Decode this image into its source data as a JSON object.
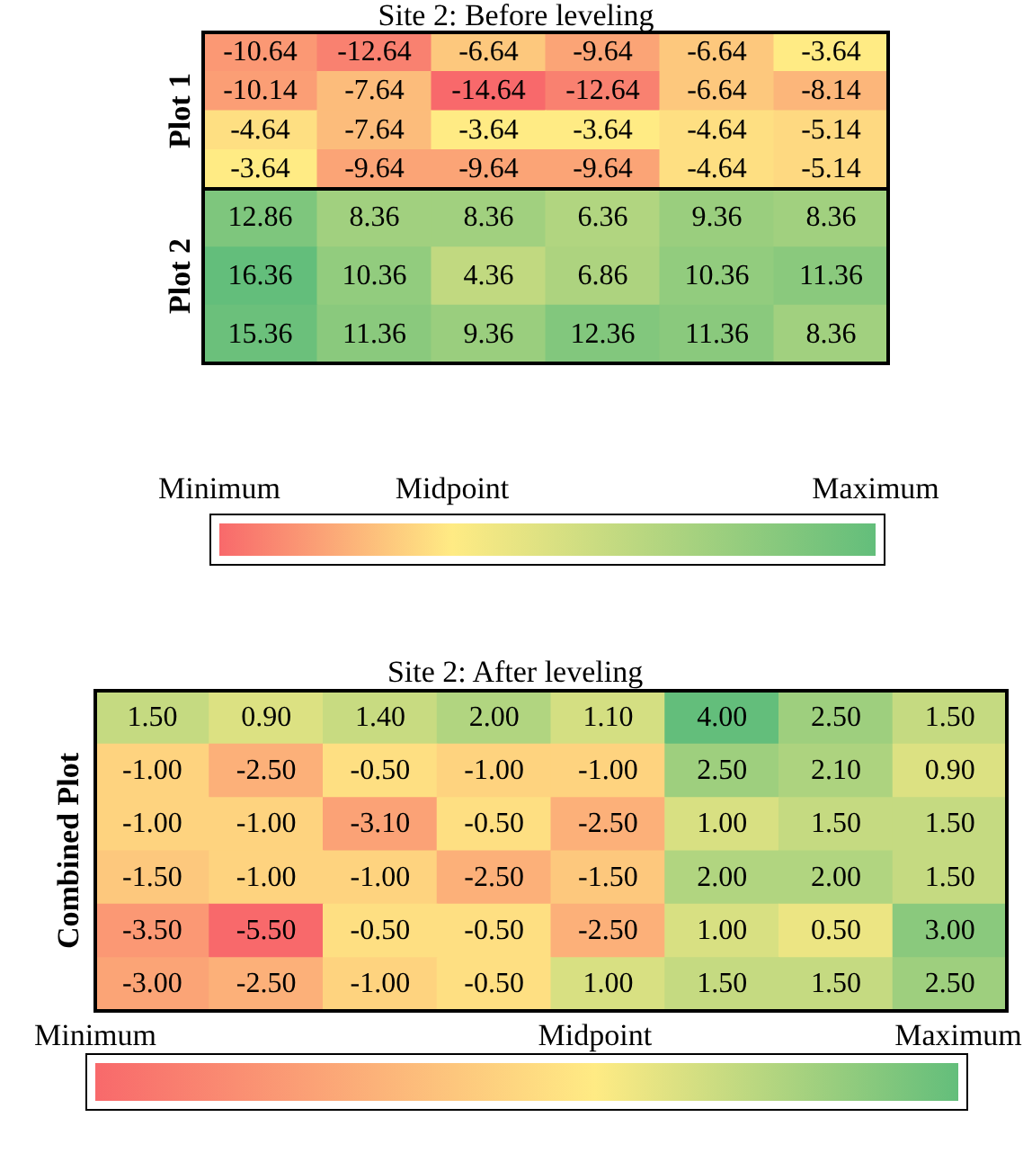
{
  "chart_data": [
    {
      "type": "heatmap",
      "title": "Site 2: Before leveling",
      "ylabel": "Plot 1",
      "tick_labels": false,
      "data_labels": true,
      "categories": [
        null,
        null,
        null,
        null,
        null,
        null
      ],
      "y_categories": [
        null,
        null,
        null,
        null
      ],
      "cells": [
        [
          -10.64,
          -12.64,
          -6.64,
          -9.64,
          -6.64,
          -3.64
        ],
        [
          -10.14,
          -7.64,
          -14.64,
          -12.64,
          -6.64,
          -8.14
        ],
        [
          -4.64,
          -7.64,
          -3.64,
          -3.64,
          -4.64,
          -5.14
        ],
        [
          -3.64,
          -9.64,
          -9.64,
          -9.64,
          -4.64,
          -5.14
        ]
      ],
      "cell_labels": [
        [
          "-10.64",
          "-12.64",
          "-6.64",
          "-9.64",
          "-6.64",
          "-3.64"
        ],
        [
          "-10.14",
          "-7.64",
          "-14.64",
          "-12.64",
          "-6.64",
          "-8.14"
        ],
        [
          "-4.64",
          "-7.64",
          "-3.64",
          "-3.64",
          "-4.64",
          "-5.14"
        ],
        [
          "-3.64",
          "-9.64",
          "-9.64",
          "-9.64",
          "-4.64",
          "-5.14"
        ]
      ]
    },
    {
      "type": "heatmap",
      "ylabel": "Plot 2",
      "tick_labels": false,
      "data_labels": true,
      "categories": [
        null,
        null,
        null,
        null,
        null,
        null
      ],
      "y_categories": [
        null,
        null,
        null
      ],
      "clim": [
        -14.64,
        16.36
      ],
      "cticks": [
        {
          "value": -14.64,
          "label": "Minimum"
        },
        {
          "value": -3.64,
          "label": "Midpoint"
        },
        {
          "value": 16.36,
          "label": "Maximum"
        }
      ],
      "cells": [
        [
          12.86,
          8.36,
          8.36,
          6.36,
          9.36,
          8.36
        ],
        [
          16.36,
          10.36,
          4.36,
          6.86,
          10.36,
          11.36
        ],
        [
          15.36,
          11.36,
          9.36,
          12.36,
          11.36,
          8.36
        ]
      ],
      "cell_labels": [
        [
          "12.86",
          "8.36",
          "8.36",
          "6.36",
          "9.36",
          "8.36"
        ],
        [
          "16.36",
          "10.36",
          "4.36",
          "6.86",
          "10.36",
          "11.36"
        ],
        [
          "15.36",
          "11.36",
          "9.36",
          "12.36",
          "11.36",
          "8.36"
        ]
      ]
    },
    {
      "type": "heatmap",
      "title": "Site 2: After leveling",
      "ylabel": "Combined Plot",
      "tick_labels": false,
      "data_labels": true,
      "categories": [
        null,
        null,
        null,
        null,
        null,
        null,
        null,
        null
      ],
      "y_categories": [
        null,
        null,
        null,
        null,
        null,
        null
      ],
      "clim": [
        -5.5,
        4.0
      ],
      "cticks": [
        {
          "value": -5.5,
          "label": "Minimum"
        },
        {
          "value": 0,
          "label": "Midpoint"
        },
        {
          "value": 4.0,
          "label": "Maximum"
        }
      ],
      "cells": [
        [
          1.5,
          0.9,
          1.4,
          2.0,
          1.1,
          4.0,
          2.5,
          1.5
        ],
        [
          -1.0,
          -2.5,
          -0.5,
          -1.0,
          -1.0,
          2.5,
          2.1,
          0.9
        ],
        [
          -1.0,
          -1.0,
          -3.1,
          -0.5,
          -2.5,
          1.0,
          1.5,
          1.5
        ],
        [
          -1.5,
          -1.0,
          -1.0,
          -2.5,
          -1.5,
          2.0,
          2.0,
          1.5
        ],
        [
          -3.5,
          -5.5,
          -0.5,
          -0.5,
          -2.5,
          1.0,
          0.5,
          3.0
        ],
        [
          -3.0,
          -2.5,
          -1.0,
          -0.5,
          1.0,
          1.5,
          1.5,
          2.5
        ]
      ],
      "cell_labels": [
        [
          "1.50",
          "0.90",
          "1.40",
          "2.00",
          "1.10",
          "4.00",
          "2.50",
          "1.50"
        ],
        [
          "-1.00",
          "-2.50",
          "-0.50",
          "-1.00",
          "-1.00",
          "2.50",
          "2.10",
          "0.90"
        ],
        [
          "-1.00",
          "-1.00",
          "-3.10",
          "-0.50",
          "-2.50",
          "1.00",
          "1.50",
          "1.50"
        ],
        [
          "-1.50",
          "-1.00",
          "-1.00",
          "-2.50",
          "-1.50",
          "2.00",
          "2.00",
          "1.50"
        ],
        [
          "-3.50",
          "-5.50",
          "-0.50",
          "-0.50",
          "-2.50",
          "1.00",
          "0.50",
          "3.00"
        ],
        [
          "-3.00",
          "-2.50",
          "-1.00",
          "-0.50",
          "1.00",
          "1.50",
          "1.50",
          "2.50"
        ]
      ]
    }
  ]
}
